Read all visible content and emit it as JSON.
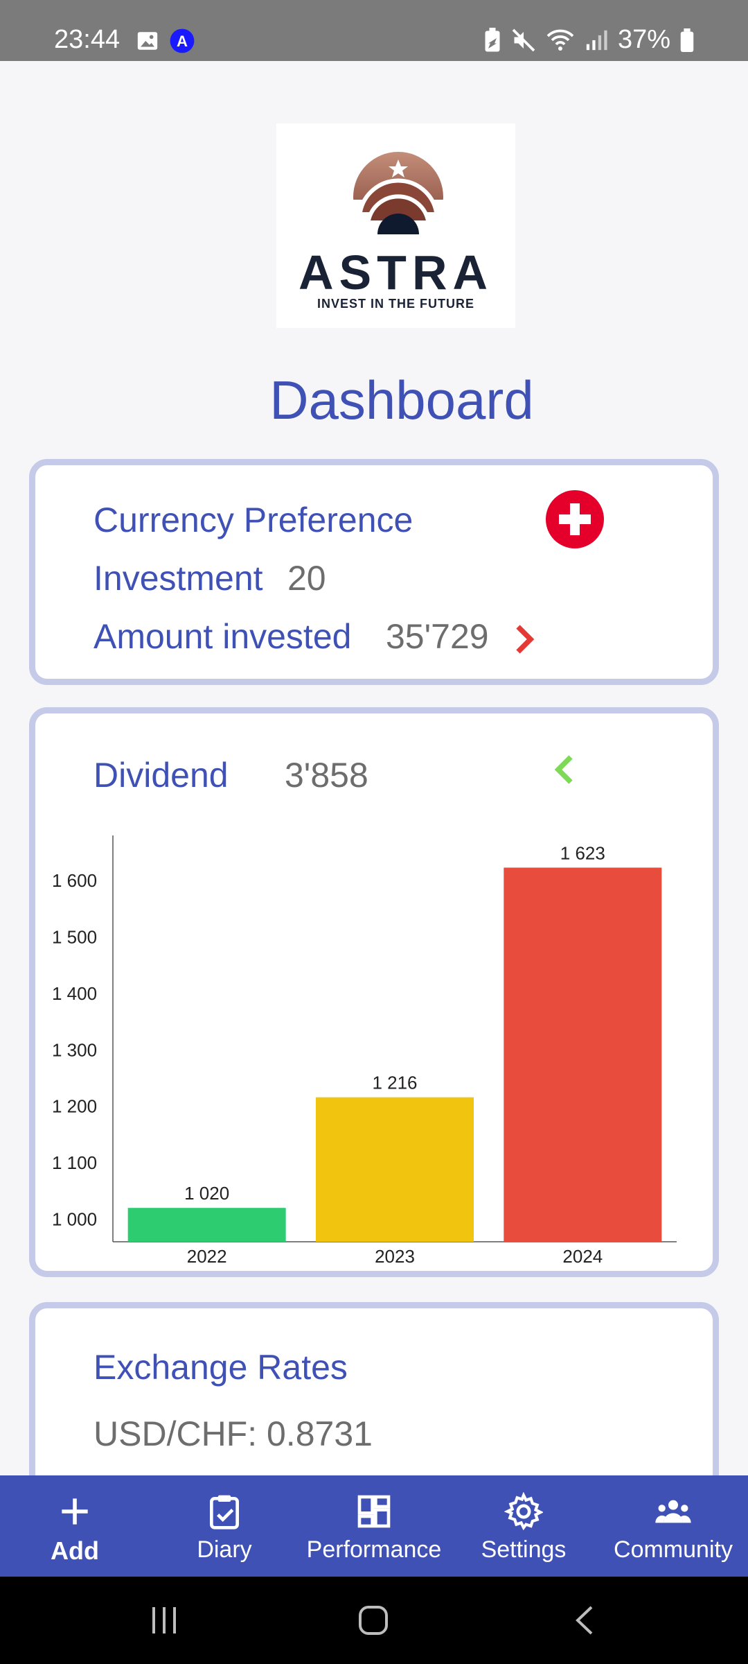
{
  "status_bar": {
    "time": "23:44",
    "battery": "37%",
    "icons": [
      "image-icon",
      "a-badge-icon",
      "battery-saver-icon",
      "mute-icon",
      "wifi-icon",
      "signal-icon",
      "battery-icon"
    ]
  },
  "logo": {
    "word": "ASTRA",
    "tagline": "INVEST IN THE FUTURE"
  },
  "page_title": "Dashboard",
  "currency_card": {
    "preference_label": "Currency Preference",
    "flag": "swiss-flag-icon",
    "investment_label": "Investment",
    "investment_value": "20",
    "amount_label": "Amount invested",
    "amount_value": "35'729",
    "chevron": "chevron-right-icon"
  },
  "dividend_card": {
    "label": "Dividend",
    "value": "3'858",
    "chevron": "chevron-left-icon"
  },
  "chart_data": {
    "type": "bar",
    "categories": [
      "2022",
      "2023",
      "2024"
    ],
    "values": [
      1020,
      1216,
      1623
    ],
    "data_labels": [
      "1 020",
      "1 216",
      "1 623"
    ],
    "colors": [
      "#2ecc71",
      "#f1c40f",
      "#e74c3c"
    ],
    "yticks": [
      "1 000",
      "1 100",
      "1 200",
      "1 300",
      "1 400",
      "1 500",
      "1 600"
    ],
    "ytick_values": [
      1000,
      1100,
      1200,
      1300,
      1400,
      1500,
      1600
    ],
    "ylim": [
      960,
      1680
    ],
    "grid": false,
    "title": "",
    "xlabel": "",
    "ylabel": ""
  },
  "rates_card": {
    "title": "Exchange Rates",
    "usd_chf": "USD/CHF: 0.8731"
  },
  "bottom_nav": [
    {
      "label": "Add",
      "icon": "plus-icon",
      "active": true
    },
    {
      "label": "Diary",
      "icon": "clipboard-check-icon",
      "active": false
    },
    {
      "label": "Performance",
      "icon": "dashboard-grid-icon",
      "active": false
    },
    {
      "label": "Settings",
      "icon": "gear-icon",
      "active": false
    },
    {
      "label": "Community",
      "icon": "people-icon",
      "active": false
    }
  ],
  "colors": {
    "primary": "#3f51b5",
    "card_border": "#c5cae9",
    "accent_red": "#e53935",
    "accent_green": "#7ed957"
  }
}
